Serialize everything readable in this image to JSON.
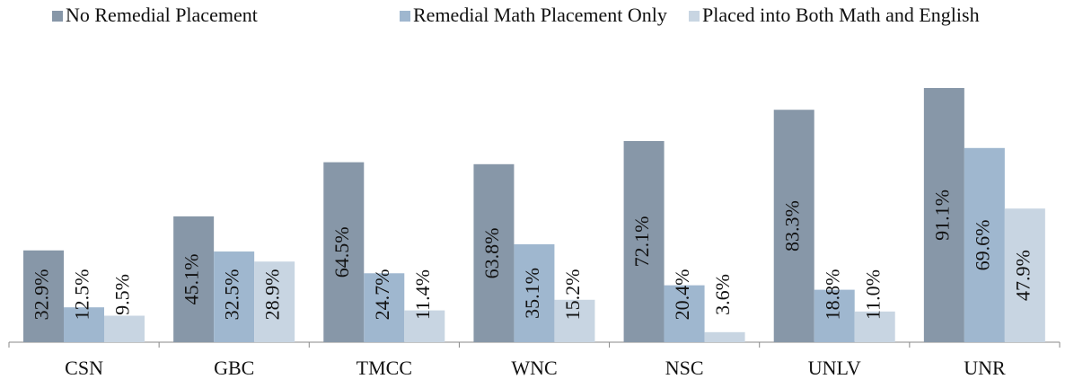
{
  "chart_data": {
    "type": "bar",
    "categories": [
      "CSN",
      "GBC",
      "TMCC",
      "WNC",
      "NSC",
      "UNLV",
      "UNR"
    ],
    "series": [
      {
        "name": "No Remedial Placement",
        "color": "#8797a8",
        "values": [
          32.9,
          45.1,
          64.5,
          63.8,
          72.1,
          83.3,
          91.1
        ],
        "value_labels": [
          "32.9%",
          "45.1%",
          "64.5%",
          "63.8%",
          "72.1%",
          "83.3%",
          "91.1%"
        ]
      },
      {
        "name": "Remedial Math Placement Only",
        "color": "#9fb7cf",
        "values": [
          12.5,
          32.5,
          24.7,
          35.1,
          20.4,
          18.8,
          69.6
        ],
        "value_labels": [
          "12.5%",
          "32.5%",
          "24.7%",
          "35.1%",
          "20.4%",
          "18.8%",
          "69.6%"
        ]
      },
      {
        "name": "Placed into Both Math and English",
        "color": "#c8d5e2",
        "values": [
          9.5,
          28.9,
          11.4,
          15.2,
          3.6,
          11.0,
          47.9
        ],
        "value_labels": [
          "9.5%",
          "28.9%",
          "11.4%",
          "15.2%",
          "3.6%",
          "11.0%",
          "47.9%"
        ]
      }
    ]
  }
}
